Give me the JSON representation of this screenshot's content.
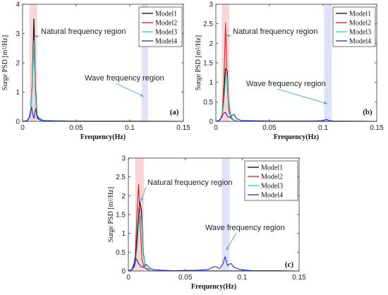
{
  "chart_data": [
    {
      "type": "line",
      "panel_label": "(a)",
      "xlabel": "Frequency(Hz)",
      "ylabel": "Surge PSD [m²/Hz]",
      "xlim": [
        0,
        0.15
      ],
      "ylim": [
        0,
        4
      ],
      "xticks": [
        "0",
        "0.05",
        "0.1",
        "0.15"
      ],
      "yticks": [
        "0",
        "1",
        "2",
        "3",
        "4"
      ],
      "grid": false,
      "legend": "top-right",
      "annotations": [
        {
          "text": "Natural frequency region",
          "arrow_to_x": 0.0105,
          "arrow_to_y": 2.9
        },
        {
          "text": "Wave frequency region",
          "arrow_to_x": 0.113,
          "arrow_to_y": 0.85
        }
      ],
      "shaded_regions": [
        {
          "label": "Natural frequency region",
          "x": [
            0.0065,
            0.0135
          ],
          "color": "#f6c8c8"
        },
        {
          "label": "Wave frequency region",
          "x": [
            0.111,
            0.117
          ],
          "color": "#d6daf4"
        }
      ],
      "series": [
        {
          "name": "Model1",
          "color": "#000000",
          "x": [
            0,
            0.005,
            0.0075,
            0.009,
            0.0105,
            0.012,
            0.0135,
            0.016,
            0.02,
            0.03,
            0.15
          ],
          "y": [
            0,
            0.02,
            0.2,
            1.3,
            3.5,
            1.2,
            0.2,
            0.04,
            0.01,
            0.005,
            0
          ]
        },
        {
          "name": "Model2",
          "color": "#e41a1c",
          "x": [
            0,
            0.005,
            0.0075,
            0.009,
            0.0105,
            0.012,
            0.0135,
            0.016,
            0.02,
            0.03,
            0.15
          ],
          "y": [
            0,
            0.02,
            0.2,
            1.2,
            2.85,
            1.0,
            0.15,
            0.03,
            0.01,
            0.005,
            0
          ]
        },
        {
          "name": "Model3",
          "color": "#2ad0c8",
          "x": [
            0,
            0.005,
            0.0075,
            0.009,
            0.0105,
            0.012,
            0.0135,
            0.016,
            0.02,
            0.03,
            0.15
          ],
          "y": [
            0,
            0.02,
            0.18,
            1.1,
            2.75,
            0.9,
            0.12,
            0.03,
            0.01,
            0.005,
            0
          ]
        },
        {
          "name": "Model4",
          "color": "#1f2bd6",
          "x": [
            0,
            0.004,
            0.006,
            0.007,
            0.0085,
            0.0095,
            0.0105,
            0.0115,
            0.0125,
            0.013,
            0.0145,
            0.016,
            0.018,
            0.02,
            0.03,
            0.05,
            0.08,
            0.15
          ],
          "y": [
            0,
            0.03,
            0.12,
            0.28,
            0.48,
            0.25,
            0.1,
            0.32,
            0.45,
            0.22,
            0.08,
            0.1,
            0.05,
            0.03,
            0.02,
            0.01,
            0.01,
            0
          ]
        }
      ]
    },
    {
      "type": "line",
      "panel_label": "(b)",
      "xlabel": "Frequency(Hz)",
      "ylabel": "Surge PSD [m²/Hz]",
      "xlim": [
        0,
        0.15
      ],
      "ylim": [
        0,
        3
      ],
      "xticks": [
        "0",
        "0.05",
        "0.1",
        "0.15"
      ],
      "yticks": [
        "0",
        "0.5",
        "1",
        "1.5",
        "2",
        "2.5",
        "3"
      ],
      "grid": false,
      "legend": "top-right",
      "annotations": [
        {
          "text": "Natural frequency region",
          "arrow_to_x": 0.0095,
          "arrow_to_y": 2.2
        },
        {
          "text": "Wave frequency region",
          "arrow_to_x": 0.104,
          "arrow_to_y": 0.45
        }
      ],
      "shaded_regions": [
        {
          "label": "Natural frequency region",
          "x": [
            0.0055,
            0.0125
          ],
          "color": "#f6c8c8"
        },
        {
          "label": "Wave frequency region",
          "x": [
            0.101,
            0.108
          ],
          "color": "#d6daf4"
        }
      ],
      "series": [
        {
          "name": "Model1",
          "color": "#000000",
          "x": [
            0,
            0.004,
            0.006,
            0.0075,
            0.009,
            0.0105,
            0.012,
            0.014,
            0.016,
            0.02,
            0.03,
            0.15
          ],
          "y": [
            0,
            0.02,
            0.15,
            0.7,
            1.35,
            1.3,
            0.5,
            0.12,
            0.04,
            0.01,
            0.005,
            0
          ]
        },
        {
          "name": "Model2",
          "color": "#e41a1c",
          "x": [
            0,
            0.004,
            0.006,
            0.0075,
            0.009,
            0.0105,
            0.012,
            0.014,
            0.016,
            0.02,
            0.03,
            0.15
          ],
          "y": [
            0,
            0.02,
            0.2,
            1.0,
            2.52,
            1.0,
            0.3,
            0.08,
            0.03,
            0.01,
            0.005,
            0
          ]
        },
        {
          "name": "Model3",
          "color": "#2ad0c8",
          "x": [
            0,
            0.004,
            0.006,
            0.0075,
            0.009,
            0.0105,
            0.012,
            0.014,
            0.016,
            0.02,
            0.03,
            0.15
          ],
          "y": [
            0,
            0.02,
            0.12,
            0.5,
            1.1,
            1.15,
            0.45,
            0.1,
            0.03,
            0.01,
            0.005,
            0
          ]
        },
        {
          "name": "Model4",
          "color": "#1f2bd6",
          "x": [
            0,
            0.003,
            0.005,
            0.007,
            0.009,
            0.011,
            0.013,
            0.015,
            0.017,
            0.019,
            0.021,
            0.024,
            0.03,
            0.05,
            0.09,
            0.1,
            0.103,
            0.106,
            0.11,
            0.15
          ],
          "y": [
            0,
            0.03,
            0.1,
            0.2,
            0.23,
            0.12,
            0.1,
            0.15,
            0.18,
            0.08,
            0.05,
            0.02,
            0.02,
            0.01,
            0.01,
            0.02,
            0.05,
            0.02,
            0.01,
            0
          ]
        }
      ]
    },
    {
      "type": "line",
      "panel_label": "(c)",
      "xlabel": "Frequency(Hz)",
      "ylabel": "Surge PSD [m²/Hz]",
      "xlim": [
        0,
        0.15
      ],
      "ylim": [
        0,
        3
      ],
      "xticks": [
        "0",
        "0.05",
        "0.1",
        "0.15"
      ],
      "yticks": [
        "0",
        "0.5",
        "1",
        "1.5",
        "2",
        "2.5",
        "3"
      ],
      "grid": false,
      "legend": "top-right",
      "annotations": [
        {
          "text": "Natural frequency region",
          "arrow_to_x": 0.011,
          "arrow_to_y": 1.85
        },
        {
          "text": "Wave frequency region",
          "arrow_to_x": 0.086,
          "arrow_to_y": 0.55
        }
      ],
      "shaded_regions": [
        {
          "label": "Natural frequency region",
          "x": [
            0.006,
            0.0135
          ],
          "color": "#f6c8c8"
        },
        {
          "label": "Wave frequency region",
          "x": [
            0.082,
            0.089
          ],
          "color": "#d6daf4"
        }
      ],
      "series": [
        {
          "name": "Model1",
          "color": "#000000",
          "x": [
            0,
            0.004,
            0.006,
            0.008,
            0.01,
            0.0115,
            0.013,
            0.015,
            0.018,
            0.02,
            0.03,
            0.15
          ],
          "y": [
            0,
            0.03,
            0.25,
            1.1,
            1.85,
            1.6,
            0.5,
            0.1,
            0.04,
            0.01,
            0.005,
            0
          ]
        },
        {
          "name": "Model2",
          "color": "#e41a1c",
          "x": [
            0,
            0.004,
            0.006,
            0.0075,
            0.009,
            0.0105,
            0.012,
            0.014,
            0.017,
            0.02,
            0.03,
            0.15
          ],
          "y": [
            0,
            0.03,
            0.4,
            1.5,
            2.3,
            1.2,
            0.3,
            0.08,
            0.03,
            0.01,
            0.005,
            0
          ]
        },
        {
          "name": "Model3",
          "color": "#2ad0c8",
          "x": [
            0,
            0.004,
            0.006,
            0.008,
            0.01,
            0.0115,
            0.013,
            0.015,
            0.018,
            0.02,
            0.03,
            0.15
          ],
          "y": [
            0,
            0.02,
            0.15,
            0.7,
            1.55,
            1.35,
            0.45,
            0.1,
            0.03,
            0.01,
            0.005,
            0
          ]
        },
        {
          "name": "Model4",
          "color": "#1f2bd6",
          "x": [
            0,
            0.003,
            0.005,
            0.007,
            0.009,
            0.011,
            0.013,
            0.015,
            0.017,
            0.019,
            0.022,
            0.026,
            0.03,
            0.04,
            0.06,
            0.07,
            0.074,
            0.077,
            0.08,
            0.083,
            0.085,
            0.087,
            0.09,
            0.093,
            0.097,
            0.1,
            0.11,
            0.13,
            0.15
          ],
          "y": [
            0,
            0.05,
            0.2,
            0.32,
            0.2,
            0.12,
            0.1,
            0.18,
            0.14,
            0.07,
            0.04,
            0.03,
            0.02,
            0.01,
            0.02,
            0.04,
            0.1,
            0.12,
            0.06,
            0.18,
            0.38,
            0.15,
            0.2,
            0.1,
            0.05,
            0.03,
            0.01,
            0.01,
            0
          ]
        }
      ]
    }
  ]
}
